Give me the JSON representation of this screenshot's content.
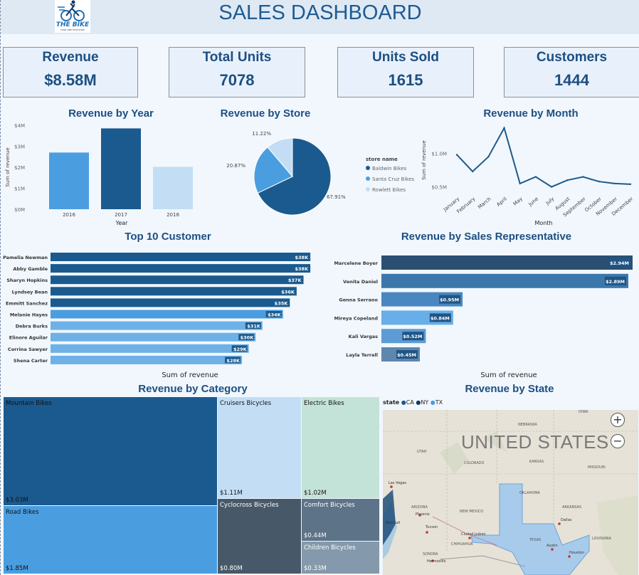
{
  "header": {
    "title": "SALES DASHBOARD",
    "logo_text": "THE BIKE",
    "logo_subtext": "YOUR ONE STOP SHOP"
  },
  "kpis": [
    {
      "label": "Revenue",
      "value": "$8.58M"
    },
    {
      "label": "Total Units",
      "value": "7078"
    },
    {
      "label": "Units Sold",
      "value": "1615"
    },
    {
      "label": "Customers",
      "value": "1444"
    }
  ],
  "colors": {
    "dark_blue": "#1b5a8e",
    "mid_blue": "#4a9ee0",
    "light_blue": "#c3def4",
    "title": "#1d4f82"
  },
  "chart_data": [
    {
      "type": "bar",
      "title": "Revenue by Year",
      "categories": [
        "2016",
        "2017",
        "2018"
      ],
      "values": [
        2.7,
        3.85,
        2.02
      ],
      "xlabel": "Year",
      "ylabel": "Sum of revenue",
      "yticks": [
        "$0M",
        "$1M",
        "$2M",
        "$3M",
        "$4M"
      ],
      "ylim": [
        0,
        4
      ]
    },
    {
      "type": "pie",
      "title": "Revenue by Store",
      "legend_title": "store name",
      "labels": [
        "Baldwin Bikes",
        "Santa Cruz Bikes",
        "Rowlett Bikes"
      ],
      "values": [
        67.91,
        20.87,
        11.22
      ],
      "value_labels": [
        "67.91%",
        "20.87%",
        "11.22%"
      ]
    },
    {
      "type": "line",
      "title": "Revenue by Month",
      "x": [
        "January",
        "February",
        "March",
        "April",
        "May",
        "June",
        "July",
        "August",
        "September",
        "October",
        "November",
        "December"
      ],
      "values": [
        0.98,
        0.73,
        0.95,
        1.38,
        0.55,
        0.65,
        0.5,
        0.6,
        0.65,
        0.58,
        0.55,
        0.54
      ],
      "xlabel": "Month",
      "ylabel": "Sum of revenue",
      "yticks": [
        "$0.5M",
        "$1.0M"
      ],
      "ylim": [
        0.4,
        1.4
      ]
    },
    {
      "type": "bar",
      "title": "Top 10 Customer",
      "orientation": "horizontal",
      "categories": [
        "Pamelia Newman",
        "Abby Gamble",
        "Sharyn Hopkins",
        "Lyndsey Bean",
        "Emmitt Sanchez",
        "Melanie Hayes",
        "Debra Burks",
        "Elinore Aguilar",
        "Corrina Sawyer",
        "Shena Carter"
      ],
      "values": [
        38,
        38,
        37,
        36,
        35,
        34,
        31,
        30,
        29,
        28
      ],
      "value_labels": [
        "$38K",
        "$38K",
        "$37K",
        "$36K",
        "$35K",
        "$34K",
        "$31K",
        "$30K",
        "$29K",
        "$28K"
      ],
      "xlabel": "Sum of revenue"
    },
    {
      "type": "bar",
      "title": "Revenue by Sales Representative",
      "orientation": "horizontal",
      "categories": [
        "Marcelene Boyer",
        "Venita Daniel",
        "Genna Serrano",
        "Mireya Copeland",
        "Kali Vargas",
        "Layla Terrell"
      ],
      "values": [
        2.94,
        2.89,
        0.95,
        0.84,
        0.52,
        0.45
      ],
      "value_labels": [
        "$2.94M",
        "$2.89M",
        "$0.95M",
        "$0.84M",
        "$0.52M",
        "$0.45M"
      ],
      "xlabel": "Sum of revenue"
    },
    {
      "type": "treemap",
      "title": "Revenue by Category",
      "labels": [
        "Mountain Bikes",
        "Road Bikes",
        "Cruisers Bicycles",
        "Cyclocross Bicycles",
        "Electric Bikes",
        "Comfort Bicycles",
        "Children Bicycles"
      ],
      "values": [
        3.03,
        1.85,
        1.11,
        0.8,
        1.02,
        0.44,
        0.33
      ],
      "value_labels": [
        "$3.03M",
        "$1.85M",
        "$1.11M",
        "$0.80M",
        "$1.02M",
        "$0.44M",
        "$0.33M"
      ]
    }
  ],
  "map": {
    "title": "Revenue by State",
    "legend_label": "state",
    "legend_items": [
      "CA",
      "NY",
      "TX"
    ],
    "country_label": "UNITED STATES",
    "zoom_in": "+",
    "zoom_out": "−",
    "place_labels": [
      "NEBRASKA",
      "IOWA",
      "UTAH",
      "COLORADO",
      "KANSAS",
      "MISSOURI",
      "OKLAHOMA",
      "ARKANSAS",
      "ARIZONA",
      "NEW MEXICO",
      "TEXAS",
      "LOUISIANA",
      "SONORA",
      "CHIHUAHUA",
      "Las Vegas",
      "Phoenix",
      "Tucson",
      "Mexicali",
      "Ciudad Juárez",
      "Dallas",
      "Austin",
      "Houston",
      "Hermosillo"
    ]
  }
}
